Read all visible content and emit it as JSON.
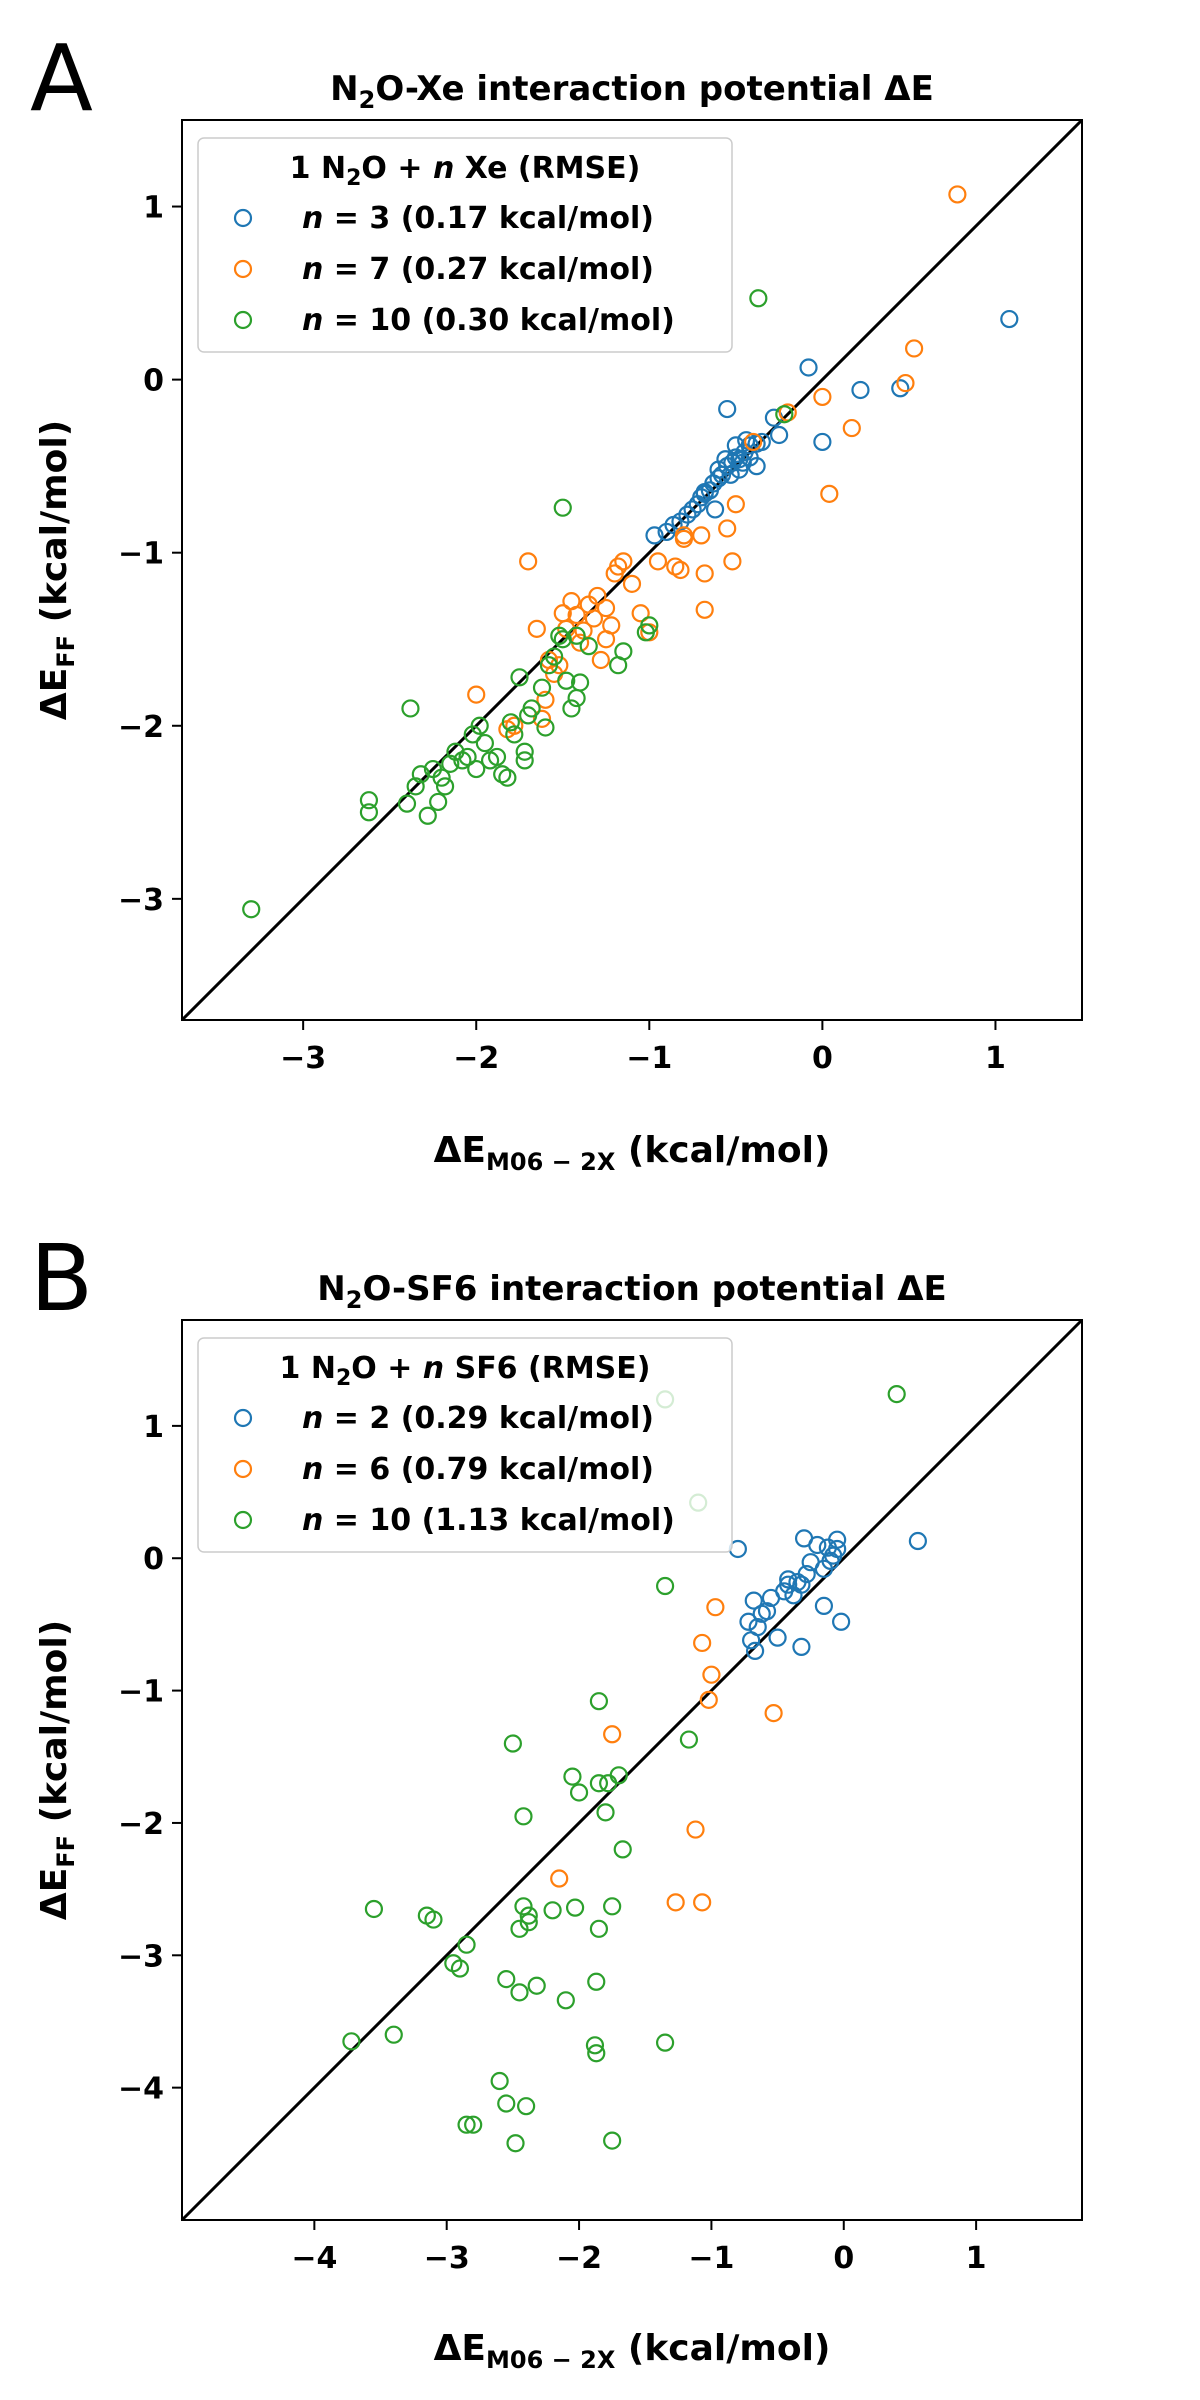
{
  "colors": {
    "n_small": "#1f77b4",
    "n_mid": "#ff7f0e",
    "n_large": "#2ca02c",
    "diagonal": "#000000"
  },
  "chart_data": [
    {
      "type": "scatter",
      "panel_letter": "A",
      "title": "N2O-Xe interaction potential ΔE",
      "title_parts": {
        "pre": "N",
        "sub": "2",
        "post": "O-Xe interaction potential ΔE"
      },
      "xlabel": "ΔE_M06-2X (kcal/mol)",
      "xlabel_parts": {
        "main": "ΔE",
        "sub": "M06 − 2X",
        "rest": " (kcal/mol)"
      },
      "ylabel": "ΔE_FF (kcal/mol)",
      "ylabel_parts": {
        "main": "ΔE",
        "sub": "FF",
        "rest": " (kcal/mol)"
      },
      "xlim": [
        -3.7,
        1.5
      ],
      "ylim": [
        -3.7,
        1.5
      ],
      "xticks": [
        -3,
        -2,
        -1,
        0,
        1
      ],
      "yticks": [
        -3,
        -2,
        -1,
        0,
        1
      ],
      "xtick_labels": [
        "−3",
        "−2",
        "−1",
        "0",
        "1"
      ],
      "ytick_labels": [
        "−3",
        "−2",
        "−1",
        "0",
        "1"
      ],
      "diagonal": true,
      "legend": {
        "title": "1 N2O + n Xe (RMSE)",
        "title_parts": {
          "a": "1 N",
          "sub": "2",
          "b": "O + ",
          "italic": "n",
          "c": " Xe (RMSE)"
        },
        "placement": "upper-left"
      },
      "series": [
        {
          "name": "n = 3 (0.17 kcal/mol)",
          "label_italic": "n",
          "label_rest": " = 3 (0.17 kcal/mol)",
          "color_key": "n_small",
          "points": [
            [
              1.08,
              0.35
            ],
            [
              0.45,
              -0.05
            ],
            [
              0.22,
              -0.06
            ],
            [
              0.0,
              -0.36
            ],
            [
              -0.08,
              0.07
            ],
            [
              -0.25,
              -0.32
            ],
            [
              -0.28,
              -0.22
            ],
            [
              -0.55,
              -0.17
            ],
            [
              -0.35,
              -0.36
            ],
            [
              -0.38,
              -0.37
            ],
            [
              -0.42,
              -0.38
            ],
            [
              -0.45,
              -0.42
            ],
            [
              -0.48,
              -0.46
            ],
            [
              -0.5,
              -0.45
            ],
            [
              -0.52,
              -0.48
            ],
            [
              -0.55,
              -0.5
            ],
            [
              -0.58,
              -0.55
            ],
            [
              -0.6,
              -0.57
            ],
            [
              -0.63,
              -0.6
            ],
            [
              -0.65,
              -0.64
            ],
            [
              -0.68,
              -0.66
            ],
            [
              -0.7,
              -0.68
            ],
            [
              -0.72,
              -0.72
            ],
            [
              -0.75,
              -0.75
            ],
            [
              -0.78,
              -0.78
            ],
            [
              -0.82,
              -0.82
            ],
            [
              -0.86,
              -0.84
            ],
            [
              -0.9,
              -0.88
            ],
            [
              -0.97,
              -0.9
            ],
            [
              -0.38,
              -0.5
            ],
            [
              -0.42,
              -0.45
            ],
            [
              -0.48,
              -0.52
            ],
            [
              -0.53,
              -0.55
            ],
            [
              -0.62,
              -0.75
            ],
            [
              -0.68,
              -0.65
            ],
            [
              -0.44,
              -0.35
            ],
            [
              -0.5,
              -0.38
            ],
            [
              -0.46,
              -0.48
            ],
            [
              -0.56,
              -0.46
            ],
            [
              -0.6,
              -0.52
            ]
          ]
        },
        {
          "name": "n = 7 (0.27 kcal/mol)",
          "label_italic": "n",
          "label_rest": " = 7 (0.27 kcal/mol)",
          "color_key": "n_mid",
          "points": [
            [
              0.78,
              1.07
            ],
            [
              0.53,
              0.18
            ],
            [
              0.48,
              -0.02
            ],
            [
              0.17,
              -0.28
            ],
            [
              0.04,
              -0.66
            ],
            [
              0.0,
              -0.1
            ],
            [
              -0.2,
              -0.19
            ],
            [
              -0.4,
              -0.36
            ],
            [
              -0.5,
              -0.72
            ],
            [
              -0.55,
              -0.86
            ],
            [
              -0.52,
              -1.05
            ],
            [
              -0.68,
              -1.12
            ],
            [
              -0.68,
              -1.33
            ],
            [
              -0.7,
              -0.9
            ],
            [
              -0.8,
              -0.92
            ],
            [
              -0.82,
              -1.1
            ],
            [
              -0.85,
              -1.08
            ],
            [
              -0.95,
              -1.05
            ],
            [
              -1.05,
              -1.35
            ],
            [
              -1.0,
              -1.46
            ],
            [
              -1.1,
              -1.18
            ],
            [
              -1.15,
              -1.05
            ],
            [
              -1.18,
              -1.08
            ],
            [
              -1.2,
              -1.12
            ],
            [
              -1.22,
              -1.42
            ],
            [
              -1.25,
              -1.32
            ],
            [
              -1.28,
              -1.62
            ],
            [
              -1.3,
              -1.25
            ],
            [
              -1.32,
              -1.38
            ],
            [
              -1.35,
              -1.3
            ],
            [
              -1.38,
              -1.45
            ],
            [
              -1.4,
              -1.52
            ],
            [
              -1.42,
              -1.36
            ],
            [
              -1.45,
              -1.28
            ],
            [
              -1.48,
              -1.44
            ],
            [
              -1.5,
              -1.35
            ],
            [
              -1.52,
              -1.65
            ],
            [
              -1.55,
              -1.7
            ],
            [
              -1.58,
              -1.62
            ],
            [
              -1.6,
              -1.85
            ],
            [
              -1.62,
              -1.96
            ],
            [
              -1.65,
              -1.44
            ],
            [
              -1.7,
              -1.05
            ],
            [
              -1.78,
              -2.0
            ],
            [
              -1.82,
              -2.02
            ],
            [
              -2.0,
              -1.82
            ],
            [
              -0.8,
              -0.9
            ],
            [
              -1.25,
              -1.5
            ]
          ]
        },
        {
          "name": "n = 10 (0.30 kcal/mol)",
          "label_italic": "n",
          "label_rest": " = 10 (0.30 kcal/mol)",
          "color_key": "n_large",
          "points": [
            [
              -0.37,
              0.47
            ],
            [
              -0.22,
              -0.2
            ],
            [
              -1.5,
              -0.74
            ],
            [
              -1.0,
              -1.42
            ],
            [
              -1.02,
              -1.46
            ],
            [
              -1.15,
              -1.57
            ],
            [
              -1.18,
              -1.65
            ],
            [
              -1.35,
              -1.54
            ],
            [
              -1.4,
              -1.75
            ],
            [
              -1.42,
              -1.84
            ],
            [
              -1.45,
              -1.9
            ],
            [
              -1.48,
              -1.74
            ],
            [
              -1.5,
              -1.5
            ],
            [
              -1.52,
              -1.48
            ],
            [
              -1.55,
              -1.6
            ],
            [
              -1.58,
              -1.65
            ],
            [
              -1.62,
              -1.78
            ],
            [
              -1.68,
              -1.9
            ],
            [
              -1.7,
              -1.94
            ],
            [
              -1.72,
              -2.15
            ],
            [
              -1.72,
              -2.2
            ],
            [
              -1.75,
              -1.72
            ],
            [
              -1.78,
              -2.05
            ],
            [
              -1.8,
              -1.98
            ],
            [
              -1.82,
              -2.3
            ],
            [
              -1.85,
              -2.28
            ],
            [
              -1.88,
              -2.18
            ],
            [
              -1.92,
              -2.2
            ],
            [
              -1.95,
              -2.1
            ],
            [
              -1.98,
              -2.0
            ],
            [
              -2.0,
              -2.25
            ],
            [
              -2.02,
              -2.05
            ],
            [
              -2.05,
              -2.18
            ],
            [
              -2.08,
              -2.2
            ],
            [
              -2.12,
              -2.15
            ],
            [
              -2.15,
              -2.22
            ],
            [
              -2.18,
              -2.35
            ],
            [
              -2.2,
              -2.3
            ],
            [
              -2.22,
              -2.44
            ],
            [
              -2.25,
              -2.25
            ],
            [
              -2.28,
              -2.52
            ],
            [
              -2.32,
              -2.28
            ],
            [
              -2.35,
              -2.35
            ],
            [
              -2.38,
              -1.9
            ],
            [
              -2.62,
              -2.43
            ],
            [
              -2.62,
              -2.5
            ],
            [
              -2.4,
              -2.45
            ],
            [
              -3.3,
              -3.06
            ],
            [
              -1.42,
              -1.48
            ],
            [
              -1.6,
              -2.01
            ]
          ]
        }
      ]
    },
    {
      "type": "scatter",
      "panel_letter": "B",
      "title": "N2O-SF6 interaction potential ΔE",
      "title_parts": {
        "pre": "N",
        "sub": "2",
        "post": "O-SF6 interaction potential ΔE"
      },
      "xlabel": "ΔE_M06-2X (kcal/mol)",
      "xlabel_parts": {
        "main": "ΔE",
        "sub": "M06 − 2X",
        "rest": " (kcal/mol)"
      },
      "ylabel": "ΔE_FF (kcal/mol)",
      "ylabel_parts": {
        "main": "ΔE",
        "sub": "FF",
        "rest": " (kcal/mol)"
      },
      "xlim": [
        -5.0,
        1.8
      ],
      "ylim": [
        -5.0,
        1.8
      ],
      "xticks": [
        -4,
        -3,
        -2,
        -1,
        0,
        1
      ],
      "yticks": [
        -4,
        -3,
        -2,
        -1,
        0,
        1
      ],
      "xtick_labels": [
        "−4",
        "−3",
        "−2",
        "−1",
        "0",
        "1"
      ],
      "ytick_labels": [
        "−4",
        "−3",
        "−2",
        "−1",
        "0",
        "1"
      ],
      "diagonal": true,
      "legend": {
        "title": "1 N2O + n SF6 (RMSE)",
        "title_parts": {
          "a": "1 N",
          "sub": "2",
          "b": "O + ",
          "italic": "n",
          "c": " SF6 (RMSE)"
        },
        "placement": "upper-left"
      },
      "series": [
        {
          "name": "n = 2 (0.29 kcal/mol)",
          "label_italic": "n",
          "label_rest": " = 2 (0.29 kcal/mol)",
          "color_key": "n_small",
          "points": [
            [
              0.56,
              0.13
            ],
            [
              -0.05,
              0.14
            ],
            [
              -0.05,
              0.07
            ],
            [
              -0.08,
              0.02
            ],
            [
              -0.1,
              -0.02
            ],
            [
              -0.12,
              0.08
            ],
            [
              -0.15,
              -0.08
            ],
            [
              -0.15,
              -0.36
            ],
            [
              -0.2,
              0.1
            ],
            [
              -0.25,
              -0.03
            ],
            [
              -0.28,
              -0.12
            ],
            [
              -0.3,
              0.15
            ],
            [
              -0.32,
              -0.2
            ],
            [
              -0.35,
              -0.18
            ],
            [
              -0.38,
              -0.28
            ],
            [
              -0.42,
              -0.16
            ],
            [
              -0.45,
              -0.25
            ],
            [
              -0.5,
              -0.6
            ],
            [
              -0.55,
              -0.3
            ],
            [
              -0.58,
              -0.4
            ],
            [
              -0.62,
              -0.42
            ],
            [
              -0.65,
              -0.52
            ],
            [
              -0.68,
              -0.32
            ],
            [
              -0.7,
              -0.62
            ],
            [
              -0.72,
              -0.48
            ],
            [
              -0.8,
              0.07
            ],
            [
              -0.32,
              -0.67
            ],
            [
              -0.67,
              -0.7
            ],
            [
              -0.02,
              -0.48
            ],
            [
              -0.42,
              -0.2
            ]
          ]
        },
        {
          "name": "n = 6 (0.79 kcal/mol)",
          "label_italic": "n",
          "label_rest": " = 6 (0.79 kcal/mol)",
          "color_key": "n_mid",
          "points": [
            [
              -0.97,
              -0.37
            ],
            [
              -1.0,
              -0.88
            ],
            [
              -1.02,
              -1.07
            ],
            [
              -1.07,
              -0.64
            ],
            [
              -0.53,
              -1.17
            ],
            [
              -1.75,
              -1.33
            ],
            [
              -1.12,
              -2.05
            ],
            [
              -1.27,
              -2.6
            ],
            [
              -1.07,
              -2.6
            ],
            [
              -2.15,
              -2.42
            ]
          ]
        },
        {
          "name": "n = 10 (1.13 kcal/mol)",
          "label_italic": "n",
          "label_rest": " = 10 (1.13 kcal/mol)",
          "color_key": "n_large",
          "points": [
            [
              0.4,
              1.24
            ],
            [
              -1.35,
              1.2
            ],
            [
              -1.1,
              0.42
            ],
            [
              -1.35,
              -0.21
            ],
            [
              -1.17,
              -1.37
            ],
            [
              -1.85,
              -1.08
            ],
            [
              -2.5,
              -1.4
            ],
            [
              -2.05,
              -1.65
            ],
            [
              -2.0,
              -1.77
            ],
            [
              -1.85,
              -1.7
            ],
            [
              -1.78,
              -1.7
            ],
            [
              -1.7,
              -1.64
            ],
            [
              -2.42,
              -1.95
            ],
            [
              -1.8,
              -1.92
            ],
            [
              -1.67,
              -2.2
            ],
            [
              -3.55,
              -2.65
            ],
            [
              -3.15,
              -2.7
            ],
            [
              -3.1,
              -2.73
            ],
            [
              -2.85,
              -2.92
            ],
            [
              -2.42,
              -2.63
            ],
            [
              -2.38,
              -2.7
            ],
            [
              -2.38,
              -2.75
            ],
            [
              -2.2,
              -2.66
            ],
            [
              -2.03,
              -2.64
            ],
            [
              -1.75,
              -2.63
            ],
            [
              -2.45,
              -2.8
            ],
            [
              -1.85,
              -2.8
            ],
            [
              -2.95,
              -3.06
            ],
            [
              -2.9,
              -3.1
            ],
            [
              -2.55,
              -3.18
            ],
            [
              -2.45,
              -3.28
            ],
            [
              -2.32,
              -3.23
            ],
            [
              -2.1,
              -3.34
            ],
            [
              -1.87,
              -3.2
            ],
            [
              -3.72,
              -3.65
            ],
            [
              -3.4,
              -3.6
            ],
            [
              -1.88,
              -3.68
            ],
            [
              -1.87,
              -3.74
            ],
            [
              -1.35,
              -3.66
            ],
            [
              -2.6,
              -3.95
            ],
            [
              -2.55,
              -4.12
            ],
            [
              -2.4,
              -4.14
            ],
            [
              -2.85,
              -4.28
            ],
            [
              -2.8,
              -4.28
            ],
            [
              -2.48,
              -4.42
            ],
            [
              -1.75,
              -4.4
            ]
          ]
        }
      ]
    }
  ]
}
